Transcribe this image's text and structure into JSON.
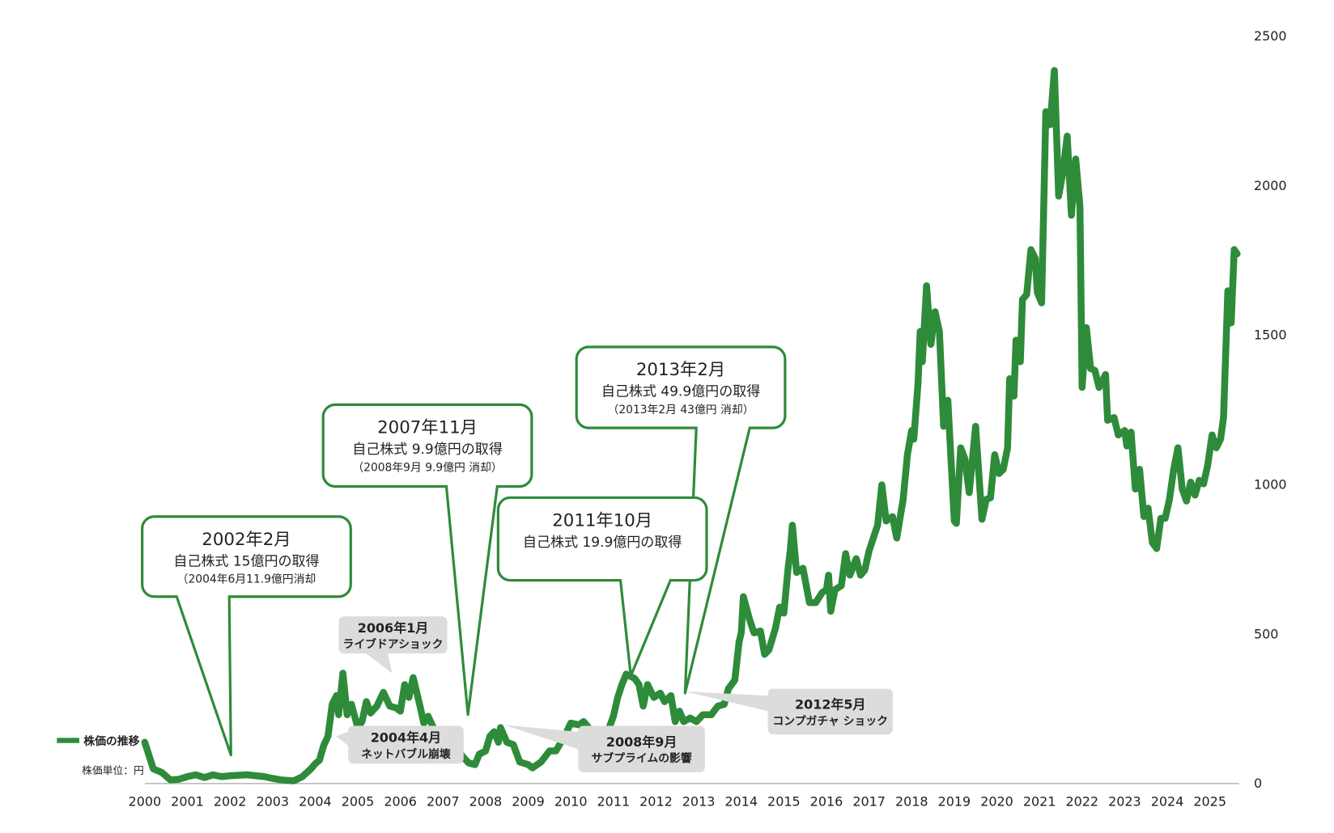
{
  "chart_data": {
    "type": "line",
    "x": [
      2000.0,
      2000.2,
      2000.4,
      2000.6,
      2000.8,
      2001.0,
      2001.2,
      2001.4,
      2001.6,
      2001.8,
      2002.0,
      2002.4,
      2002.8,
      2003.0,
      2003.2,
      2003.5,
      2003.7,
      2003.9,
      2004.0,
      2004.1,
      2004.2,
      2004.3,
      2004.4,
      2004.5,
      2004.55,
      2004.65,
      2004.75,
      2004.85,
      2005.0,
      2005.1,
      2005.2,
      2005.3,
      2005.45,
      2005.6,
      2005.75,
      2005.9,
      2006.0,
      2006.1,
      2006.2,
      2006.3,
      2006.45,
      2006.55,
      2006.65,
      2006.8,
      2007.0,
      2007.2,
      2007.45,
      2007.6,
      2007.75,
      2007.85,
      2008.0,
      2008.1,
      2008.2,
      2008.3,
      2008.35,
      2008.5,
      2008.65,
      2008.8,
      2009.0,
      2009.1,
      2009.3,
      2009.5,
      2009.65,
      2009.85,
      2010.0,
      2010.2,
      2010.3,
      2010.5,
      2010.7,
      2010.9,
      2011.0,
      2011.1,
      2011.2,
      2011.3,
      2011.5,
      2011.6,
      2011.7,
      2011.8,
      2011.95,
      2012.1,
      2012.2,
      2012.35,
      2012.45,
      2012.55,
      2012.65,
      2012.8,
      2012.95,
      2013.1,
      2013.3,
      2013.45,
      2013.6,
      2013.7,
      2013.85,
      2013.95,
      2014.0,
      2014.05,
      2014.2,
      2014.3,
      2014.45,
      2014.55,
      2014.65,
      2014.8,
      2014.9,
      2015.0,
      2015.1,
      2015.15,
      2015.2,
      2015.3,
      2015.45,
      2015.6,
      2015.75,
      2015.9,
      2016.0,
      2016.05,
      2016.1,
      2016.2,
      2016.35,
      2016.45,
      2016.55,
      2016.7,
      2016.8,
      2016.9,
      2017.0,
      2017.1,
      2017.2,
      2017.3,
      2017.4,
      2017.55,
      2017.65,
      2017.8,
      2017.9,
      2018.0,
      2018.05,
      2018.15,
      2018.2,
      2018.25,
      2018.35,
      2018.45,
      2018.55,
      2018.65,
      2018.75,
      2018.85,
      2019.0,
      2019.05,
      2019.15,
      2019.25,
      2019.35,
      2019.5,
      2019.65,
      2019.75,
      2019.85,
      2019.95,
      2020.05,
      2020.15,
      2020.25,
      2020.3,
      2020.4,
      2020.45,
      2020.55,
      2020.6,
      2020.7,
      2020.8,
      2020.9,
      2020.95,
      2021.05,
      2021.15,
      2021.25,
      2021.35,
      2021.45,
      2021.55,
      2021.65,
      2021.75,
      2021.85,
      2021.95,
      2022.0,
      2022.1,
      2022.2,
      2022.3,
      2022.4,
      2022.55,
      2022.6,
      2022.75,
      2022.85,
      2023.0,
      2023.05,
      2023.15,
      2023.25,
      2023.35,
      2023.45,
      2023.55,
      2023.65,
      2023.75,
      2023.85,
      2023.95,
      2024.05,
      2024.15,
      2024.25,
      2024.35,
      2024.45,
      2024.55,
      2024.65,
      2024.75,
      2024.85,
      2024.95,
      2025.05,
      2025.15,
      2025.25,
      2025.32,
      2025.42,
      2025.5,
      2025.57,
      2025.64
    ],
    "series": [
      {
        "name": "株価の推移",
        "color": "#2e8b3a",
        "values": [
          138,
          49,
          37,
          12,
          14,
          23,
          29,
          20,
          29,
          23,
          26,
          29,
          23,
          17,
          12,
          9,
          23,
          49,
          66,
          78,
          127,
          158,
          265,
          294,
          230,
          369,
          230,
          265,
          187,
          207,
          274,
          236,
          259,
          305,
          259,
          253,
          242,
          331,
          288,
          354,
          265,
          202,
          225,
          179,
          138,
          150,
          92,
          69,
          63,
          98,
          109,
          158,
          173,
          138,
          187,
          138,
          130,
          72,
          63,
          52,
          72,
          109,
          109,
          158,
          202,
          196,
          207,
          173,
          156,
          187,
          225,
          288,
          331,
          366,
          351,
          331,
          259,
          331,
          288,
          302,
          274,
          294,
          207,
          242,
          207,
          219,
          207,
          230,
          230,
          259,
          265,
          317,
          346,
          475,
          504,
          625,
          547,
          504,
          510,
          432,
          447,
          518,
          590,
          570,
          720,
          778,
          864,
          706,
          720,
          605,
          605,
          639,
          648,
          697,
          576,
          648,
          662,
          769,
          697,
          752,
          697,
          714,
          778,
          821,
          864,
          999,
          878,
          893,
          821,
          950,
          1100,
          1181,
          1152,
          1339,
          1512,
          1411,
          1665,
          1469,
          1578,
          1512,
          1195,
          1282,
          878,
          870,
          1123,
          1086,
          973,
          1195,
          884,
          950,
          956,
          1100,
          1037,
          1051,
          1123,
          1354,
          1296,
          1483,
          1411,
          1619,
          1636,
          1786,
          1757,
          1642,
          1608,
          2247,
          2204,
          2385,
          1965,
          2045,
          2166,
          1901,
          2089,
          1930,
          1325,
          1525,
          1388,
          1382,
          1325,
          1368,
          1215,
          1224,
          1166,
          1181,
          1129,
          1175,
          985,
          1051,
          893,
          921,
          806,
          786,
          887,
          887,
          950,
          1051,
          1123,
          985,
          945,
          1008,
          965,
          1014,
          1002,
          1066,
          1166,
          1123,
          1152,
          1224,
          1648,
          1541,
          1786,
          1772
        ]
      }
    ],
    "xlim": [
      2000,
      2025.7
    ],
    "xticks": [
      2000,
      2001,
      2002,
      2003,
      2004,
      2005,
      2006,
      2007,
      2008,
      2009,
      2010,
      2011,
      2012,
      2013,
      2014,
      2015,
      2016,
      2017,
      2018,
      2019,
      2020,
      2021,
      2022,
      2023,
      2024,
      2025
    ],
    "ylim": [
      0,
      2500
    ],
    "yticks": [
      0,
      500,
      1000,
      1500,
      2000,
      2500
    ],
    "unit_label": "株価単位：円",
    "callouts": [
      {
        "lines": [
          "2002年2月",
          "自己株式 15億円の取得",
          "（2004年6月11.9億円消却"
        ]
      },
      {
        "lines": [
          "2007年11月",
          "自己株式 9.9億円の取得",
          "（2008年9月 9.9億円 消却）"
        ]
      },
      {
        "lines": [
          "2013年2月",
          "自己株式 49.9億円の取得",
          "（2013年2月 43億円 消却）"
        ]
      },
      {
        "lines": [
          "2011年10月",
          "自己株式 19.9億円の取得"
        ]
      }
    ],
    "event_labels": [
      {
        "lines": [
          "2006年1月",
          "ライブドアショック"
        ]
      },
      {
        "lines": [
          "2004年4月",
          "ネットバブル崩壊"
        ]
      },
      {
        "lines": [
          "2008年9月",
          "サブプライムの影響"
        ]
      },
      {
        "lines": [
          "2012年5月",
          "コンプガチャ ショック"
        ]
      }
    ]
  }
}
